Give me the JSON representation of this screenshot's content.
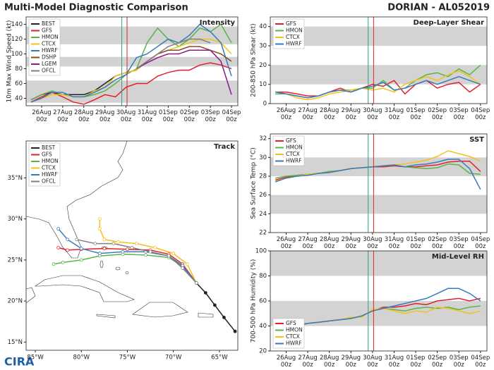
{
  "title": "Multi-Model Diagnostic Comparison",
  "storm": "DORIAN - AL052019",
  "logo": "CIRA",
  "chart_data": [
    {
      "type": "line",
      "title": "Intensity",
      "ylabel": "10m Max Wind Speed (kt)",
      "legend": "upper left",
      "categories": [
        null,
        "26Aug 00z",
        null,
        "27Aug 00z",
        null,
        "28Aug 00z",
        null,
        "29Aug 00z",
        null,
        "30Aug 00z",
        null,
        "31Aug 00z",
        null,
        "01Sep 00z",
        null,
        "02Sep 00z",
        null,
        "03Sep 00z",
        null,
        "04Sep 00z"
      ],
      "ylim": [
        30,
        150
      ],
      "yticks": [
        40,
        60,
        80,
        100,
        120,
        140
      ],
      "bands": [
        [
          34,
          64
        ],
        [
          83,
          96
        ],
        [
          113,
          137
        ]
      ],
      "reference_lines": [
        {
          "x": 8.6,
          "color": "#2e9e8a"
        },
        {
          "x": 9.1,
          "color": "#d62728"
        }
      ],
      "series": [
        {
          "name": "BEST",
          "color": "#222222",
          "values": [
            38,
            45,
            48,
            45,
            45,
            45,
            50,
            60,
            70,
            75,
            78,
            null,
            null,
            null,
            null,
            null,
            null,
            null,
            null,
            null
          ]
        },
        {
          "name": "GFS",
          "color": "#e3202a",
          "values": [
            35,
            42,
            48,
            42,
            35,
            32,
            38,
            45,
            42,
            55,
            60,
            60,
            70,
            75,
            78,
            78,
            85,
            88,
            85,
            80
          ]
        },
        {
          "name": "HMON",
          "color": "#5ab44b",
          "values": [
            38,
            45,
            50,
            45,
            42,
            42,
            45,
            50,
            60,
            72,
            80,
            115,
            135,
            120,
            110,
            120,
            135,
            130,
            140,
            115
          ]
        },
        {
          "name": "CTCX",
          "color": "#f2c318",
          "values": [
            35,
            40,
            45,
            45,
            42,
            42,
            50,
            55,
            70,
            75,
            78,
            90,
            100,
            105,
            110,
            115,
            120,
            120,
            115,
            100
          ]
        },
        {
          "name": "HWRF",
          "color": "#3a7abf",
          "values": [
            35,
            40,
            48,
            48,
            42,
            42,
            48,
            55,
            65,
            72,
            95,
            100,
            110,
            120,
            115,
            125,
            140,
            130,
            115,
            70
          ]
        },
        {
          "name": "DSHP",
          "color": "#8b4a1c",
          "values": [
            null,
            null,
            null,
            null,
            null,
            null,
            null,
            null,
            null,
            null,
            80,
            90,
            100,
            105,
            105,
            110,
            110,
            105,
            100,
            90
          ]
        },
        {
          "name": "LGEM",
          "color": "#8b1a8b",
          "values": [
            null,
            null,
            null,
            null,
            null,
            null,
            null,
            null,
            null,
            null,
            80,
            88,
            95,
            100,
            100,
            105,
            105,
            105,
            90,
            45
          ]
        },
        {
          "name": "OFCL",
          "color": "#808080",
          "values": [
            null,
            null,
            null,
            null,
            null,
            null,
            null,
            null,
            null,
            null,
            80,
            90,
            100,
            110,
            115,
            120,
            120,
            115,
            null,
            null
          ]
        }
      ]
    },
    {
      "type": "line",
      "title": "Deep-Layer Shear",
      "ylabel": "200-850 hPa Shear (kt)",
      "legend": "upper left",
      "categories": [
        null,
        "26Aug 00z",
        null,
        "27Aug 00z",
        null,
        "28Aug 00z",
        null,
        "29Aug 00z",
        null,
        "30Aug 00z",
        null,
        "31Aug 00z",
        null,
        "01Sep 00z",
        null,
        "02Sep 00z",
        null,
        "03Sep 00z",
        null,
        "04Sep 00z"
      ],
      "ylim": [
        0,
        45
      ],
      "yticks": [
        0,
        10,
        20,
        30,
        40
      ],
      "bands": [
        [
          10,
          20
        ],
        [
          30,
          40
        ]
      ],
      "reference_lines": [
        {
          "x": 8.6,
          "color": "#2e9e8a"
        },
        {
          "x": 9.1,
          "color": "#d62728"
        }
      ],
      "series": [
        {
          "name": "GFS",
          "color": "#e3202a",
          "values": [
            6,
            6,
            5,
            4,
            4,
            6,
            8,
            6,
            8,
            10,
            9,
            12,
            5,
            10,
            12,
            8,
            10,
            11,
            6,
            10
          ]
        },
        {
          "name": "HMON",
          "color": "#5ab44b",
          "values": [
            5,
            5,
            4,
            3,
            4,
            6,
            7,
            7,
            8,
            8,
            12,
            7,
            8,
            12,
            15,
            16,
            14,
            18,
            15,
            20
          ]
        },
        {
          "name": "CTCX",
          "color": "#f2c318",
          "values": [
            6,
            5,
            3,
            2,
            3,
            5,
            6,
            7,
            8,
            7,
            8,
            6,
            10,
            12,
            14,
            12,
            15,
            17,
            14,
            10
          ]
        },
        {
          "name": "HWRF",
          "color": "#3a7abf",
          "values": [
            6,
            5,
            4,
            3,
            4,
            6,
            7,
            6,
            8,
            9,
            11,
            7,
            8,
            10,
            12,
            10,
            12,
            14,
            12,
            10
          ]
        }
      ]
    },
    {
      "type": "line",
      "title": "SST",
      "ylabel": "Sea Surface Temp (°C)",
      "legend": "upper left",
      "categories": [
        null,
        "26Aug 00z",
        null,
        "27Aug 00z",
        null,
        "28Aug 00z",
        null,
        "29Aug 00z",
        null,
        "30Aug 00z",
        null,
        "31Aug 00z",
        null,
        "01Sep 00z",
        null,
        "02Sep 00z",
        null,
        "03Sep 00z",
        null,
        "04Sep 00z"
      ],
      "ylim": [
        22,
        32.5
      ],
      "yticks": [
        22,
        24,
        26,
        28,
        30,
        32
      ],
      "bands": [
        [
          24,
          26
        ],
        [
          28,
          30
        ]
      ],
      "reference_lines": [
        {
          "x": 8.6,
          "color": "#2e9e8a"
        },
        {
          "x": 9.1,
          "color": "#d62728"
        }
      ],
      "series": [
        {
          "name": "GFS",
          "color": "#e3202a",
          "values": [
            27.6,
            27.9,
            28.1,
            28.2,
            28.3,
            28.4,
            28.6,
            28.8,
            28.9,
            29,
            29,
            29.1,
            29,
            29,
            29.1,
            29.2,
            29.5,
            29.6,
            29.6,
            28.5
          ]
        },
        {
          "name": "HMON",
          "color": "#5ab44b",
          "values": [
            27.8,
            28,
            28.1,
            28.2,
            28.3,
            28.5,
            28.6,
            28.8,
            28.9,
            29,
            29.1,
            29.2,
            29,
            28.9,
            28.8,
            28.9,
            29.3,
            29.2,
            28.3,
            28.2
          ]
        },
        {
          "name": "CTCX",
          "color": "#f2c318",
          "values": [
            27.5,
            27.8,
            28,
            28.2,
            28.3,
            28.4,
            28.6,
            28.8,
            28.9,
            29,
            29.1,
            29.2,
            29.3,
            29.5,
            29.7,
            30.1,
            30.7,
            30.4,
            30.1,
            29.6
          ]
        },
        {
          "name": "HWRF",
          "color": "#3a7abf",
          "values": [
            27.4,
            27.8,
            28,
            28.1,
            28.3,
            28.4,
            28.6,
            28.8,
            28.9,
            29,
            29.1,
            29.2,
            29,
            29.2,
            29.3,
            29.5,
            29.8,
            29.8,
            28.8,
            26.6
          ]
        }
      ]
    },
    {
      "type": "line",
      "title": "Mid-Level RH",
      "ylabel": "700-500 hPa Humidity (%)",
      "legend": "lower left",
      "categories": [
        null,
        "26Aug 00z",
        null,
        "27Aug 00z",
        null,
        "28Aug 00z",
        null,
        "29Aug 00z",
        null,
        "30Aug 00z",
        null,
        "31Aug 00z",
        null,
        "01Sep 00z",
        null,
        "02Sep 00z",
        null,
        "03Sep 00z",
        null,
        "04Sep 00z"
      ],
      "ylim": [
        20,
        100
      ],
      "yticks": [
        20,
        40,
        60,
        80,
        100
      ],
      "bands": [
        [
          40,
          60
        ],
        [
          80,
          100
        ]
      ],
      "reference_lines": [
        {
          "x": 8.6,
          "color": "#2e9e8a"
        },
        {
          "x": 9.1,
          "color": "#d62728"
        }
      ],
      "series": [
        {
          "name": "GFS",
          "color": "#e3202a",
          "values": [
            39,
            40,
            41,
            42,
            43,
            44,
            45,
            46,
            48,
            52,
            55,
            55,
            56,
            58,
            57,
            60,
            61,
            62,
            60,
            62
          ]
        },
        {
          "name": "HMON",
          "color": "#5ab44b",
          "values": [
            39,
            39,
            40,
            42,
            43,
            44,
            45,
            46,
            48,
            52,
            54,
            53,
            52,
            54,
            55,
            54,
            55,
            53,
            55,
            56
          ]
        },
        {
          "name": "CTCX",
          "color": "#f2c318",
          "values": [
            40,
            38,
            40,
            42,
            43,
            44,
            45,
            47,
            47,
            53,
            54,
            52,
            50,
            52,
            51,
            55,
            54,
            52,
            50,
            52
          ]
        },
        {
          "name": "HWRF",
          "color": "#3a7abf",
          "values": [
            39,
            39,
            40,
            42,
            43,
            44,
            45,
            46,
            48,
            52,
            54,
            56,
            58,
            60,
            62,
            66,
            70,
            70,
            66,
            60
          ]
        }
      ]
    },
    {
      "type": "track",
      "title": "Track",
      "legend": "upper left",
      "xlim": [
        -86,
        -63
      ],
      "ylim": [
        14,
        39.5
      ],
      "xticks": [
        {
          "value": -85,
          "label": "85°W"
        },
        {
          "value": -80,
          "label": "80°W"
        },
        {
          "value": -75,
          "label": "75°W"
        },
        {
          "value": -70,
          "label": "70°W"
        },
        {
          "value": -65,
          "label": "65°W"
        }
      ],
      "yticks": [
        {
          "value": 15,
          "label": "15°N"
        },
        {
          "value": 20,
          "label": "20°N"
        },
        {
          "value": 25,
          "label": "25°N"
        },
        {
          "value": 30,
          "label": "30°N"
        },
        {
          "value": 35,
          "label": "35°N"
        }
      ],
      "series": [
        {
          "name": "BEST",
          "color": "#222222",
          "x": [
            -63.3,
            -64.5,
            -65.5,
            -66.5,
            -67.5
          ],
          "y": [
            16.3,
            18,
            19.5,
            21,
            22.2
          ]
        },
        {
          "name": "GFS",
          "color": "#e3202a",
          "x": [
            -67.5,
            -69,
            -70.5,
            -72.5,
            -75,
            -77.5,
            -80,
            -81.5,
            -82.5
          ],
          "y": [
            22.2,
            24.5,
            25.7,
            26.2,
            26.3,
            26.4,
            26.3,
            26.2,
            26.5
          ]
        },
        {
          "name": "HMON",
          "color": "#5ab44b",
          "x": [
            -67.5,
            -69,
            -70.5,
            -73,
            -75.5,
            -78,
            -80,
            -82,
            -83
          ],
          "y": [
            22.2,
            24.2,
            25.3,
            25.6,
            25.7,
            25.5,
            25,
            24.7,
            24.5
          ]
        },
        {
          "name": "CTCX",
          "color": "#f2c318",
          "x": [
            -67.5,
            -68.5,
            -70,
            -72,
            -74,
            -76,
            -77.5,
            -78,
            -78
          ],
          "y": [
            22.2,
            24.5,
            25.8,
            26.5,
            27,
            27.2,
            27.5,
            28.8,
            30
          ]
        },
        {
          "name": "HWRF",
          "color": "#3a7abf",
          "x": [
            -67.5,
            -69,
            -70.5,
            -73,
            -75.5,
            -78,
            -80,
            -81.5,
            -82.5
          ],
          "y": [
            22.2,
            24.3,
            25.5,
            26,
            26,
            25.8,
            26.4,
            27.5,
            28.8
          ]
        },
        {
          "name": "OFCL",
          "color": "#808080",
          "x": [
            -67.5,
            -69,
            -70.5,
            -72.5,
            -74.5,
            -76.5,
            -78.5,
            -80.5
          ],
          "y": [
            22.2,
            24,
            25.5,
            26,
            26.5,
            27,
            27,
            27.5
          ]
        }
      ]
    }
  ]
}
